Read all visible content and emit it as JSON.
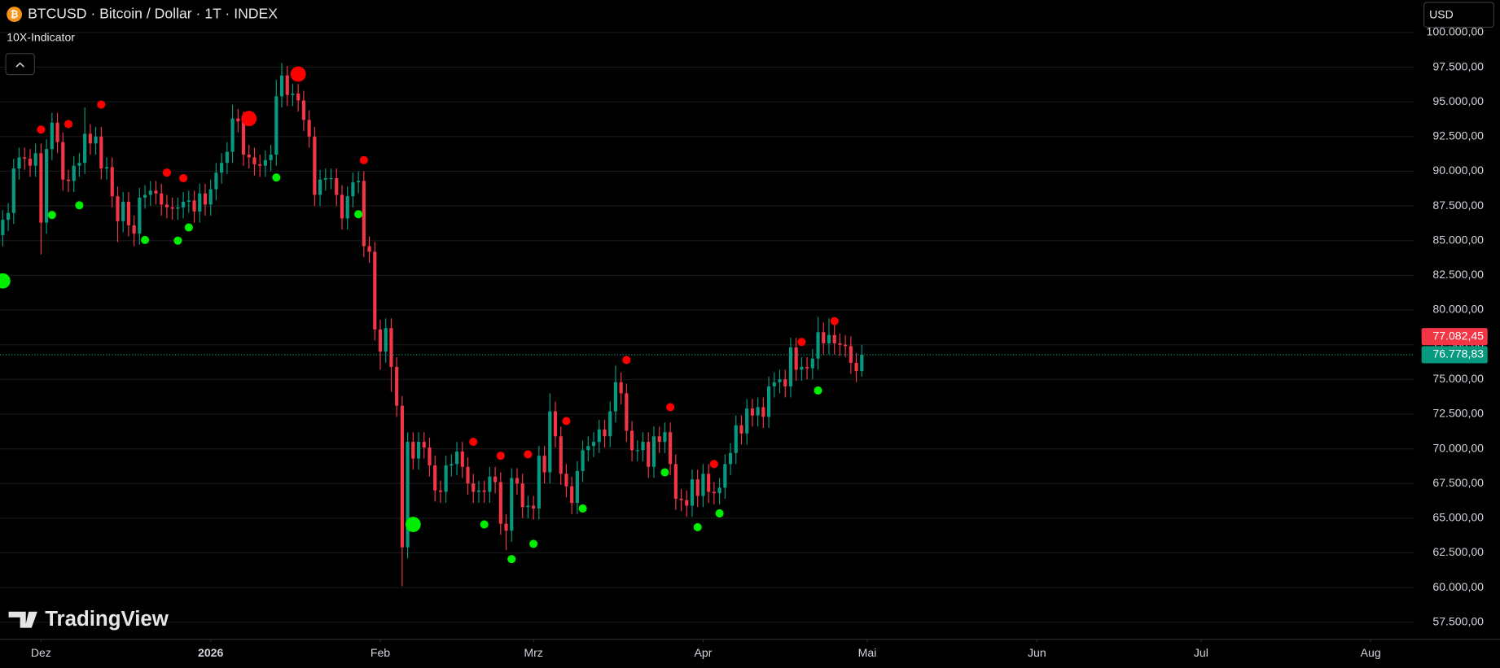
{
  "header": {
    "symbol": "BTCUSD · Bitcoin / Dollar · 1T · INDEX",
    "indicator": "10X-Indicator",
    "currency": "USD",
    "brand": "TradingView"
  },
  "chart_data": {
    "type": "candlestick",
    "open": [
      85400,
      86500,
      87000,
      90200,
      91000,
      90900,
      90400,
      91300,
      86300,
      91600,
      93500,
      92100,
      89400,
      89300,
      90400,
      90600,
      92700,
      92000,
      92500,
      90200,
      90300,
      88200,
      86400,
      87800,
      86100,
      85500,
      88100,
      88300,
      88600,
      88400,
      87600,
      87400,
      87300,
      87400,
      87800,
      87900,
      87100,
      88400,
      87600,
      88700,
      89900,
      90600,
      91400,
      93800,
      93600,
      91200,
      91000,
      90500,
      90400,
      90800,
      91200,
      95400,
      96900,
      95500,
      95600,
      95100,
      93700,
      92500,
      88300,
      89400,
      89500,
      89500,
      88300,
      86600,
      88200,
      89200,
      89300,
      84600,
      84200,
      78600,
      77000,
      78700,
      75900,
      73100,
      62900,
      70500,
      69300,
      70500,
      70100,
      68800,
      67000,
      66900,
      68800,
      68900,
      69800,
      68700,
      67500,
      66900,
      67000,
      66900,
      68000,
      67600,
      64600,
      64100,
      67900,
      67500,
      65800,
      65900,
      65700,
      69500,
      68300,
      72700,
      70900,
      68200,
      67300,
      66100,
      68400,
      69900,
      70200,
      70500,
      71400,
      70900,
      72700,
      74800,
      74000,
      71300,
      69900,
      69900,
      70500,
      68700,
      70900,
      70500,
      71200,
      68900,
      66400,
      66300,
      65900,
      67800,
      66600,
      68200,
      66900,
      66800,
      67200,
      68900,
      69700,
      71700,
      71100,
      72900,
      72400,
      73000,
      72300,
      74500,
      74800,
      75000,
      74500,
      77300,
      75700,
      75900,
      75800,
      76500,
      78400,
      77600,
      78200,
      77600,
      77500,
      77400,
      76200,
      75600
    ],
    "high": [
      87200,
      87700,
      90900,
      91700,
      91700,
      91600,
      92000,
      92000,
      92300,
      94200,
      94200,
      92800,
      90100,
      91100,
      91300,
      94600,
      93400,
      93200,
      93200,
      91000,
      91000,
      88900,
      88500,
      88500,
      86800,
      88800,
      89000,
      89300,
      89300,
      89100,
      88300,
      88100,
      88100,
      88500,
      88600,
      88600,
      89100,
      89100,
      89400,
      90600,
      91300,
      92100,
      94800,
      94500,
      94300,
      91900,
      91700,
      91200,
      91500,
      91900,
      96600,
      97800,
      97600,
      96300,
      96300,
      95800,
      94400,
      93200,
      90100,
      90200,
      90200,
      90200,
      89000,
      88900,
      89900,
      90000,
      90000,
      85300,
      84900,
      79300,
      79400,
      79400,
      76600,
      73800,
      71200,
      71200,
      71200,
      71200,
      70800,
      69500,
      67700,
      69500,
      69600,
      70500,
      70500,
      69400,
      68200,
      67700,
      67700,
      68700,
      68700,
      68300,
      65300,
      68600,
      68600,
      68200,
      66600,
      66600,
      70200,
      70200,
      74000,
      73400,
      71600,
      68900,
      68000,
      69100,
      70600,
      70900,
      71200,
      72100,
      72100,
      73400,
      76000,
      75500,
      74700,
      72000,
      70600,
      71200,
      71200,
      71600,
      71600,
      71900,
      71900,
      69600,
      67100,
      67000,
      68500,
      68500,
      68900,
      68900,
      67600,
      67900,
      69600,
      70400,
      72400,
      72400,
      73600,
      73600,
      73700,
      73700,
      75200,
      75500,
      75700,
      75700,
      78000,
      78000,
      76600,
      76600,
      77200,
      79500,
      79100,
      79400,
      78900,
      78300,
      78200,
      78100,
      76900,
      77500
    ],
    "low": [
      84600,
      85700,
      86200,
      89400,
      90100,
      89600,
      89600,
      84000,
      85500,
      90800,
      91300,
      88600,
      88500,
      88500,
      89600,
      89800,
      91200,
      91200,
      89400,
      89400,
      87400,
      84900,
      85600,
      85300,
      84600,
      84700,
      87300,
      87500,
      87600,
      86800,
      86600,
      86500,
      86500,
      86600,
      87000,
      86300,
      86300,
      86800,
      86800,
      87900,
      89100,
      89800,
      90600,
      92800,
      90400,
      90200,
      89700,
      89600,
      89600,
      90000,
      90400,
      94600,
      94700,
      94700,
      94300,
      92900,
      91700,
      87500,
      87500,
      88600,
      88700,
      87500,
      85800,
      85800,
      87400,
      88400,
      83800,
      83400,
      77800,
      75700,
      76200,
      74100,
      72300,
      60100,
      62100,
      68500,
      68500,
      69300,
      68000,
      66200,
      66100,
      66100,
      68000,
      68100,
      67900,
      66700,
      66100,
      66100,
      66100,
      66100,
      66800,
      63800,
      62700,
      63300,
      66700,
      65000,
      65000,
      64900,
      64900,
      67500,
      67500,
      70100,
      67400,
      66500,
      65300,
      65300,
      67600,
      69100,
      69400,
      69700,
      70100,
      70100,
      71900,
      73200,
      70500,
      69100,
      69100,
      69100,
      67900,
      67900,
      69700,
      69700,
      68100,
      65600,
      65500,
      65100,
      65100,
      65800,
      65800,
      66100,
      66000,
      66000,
      66400,
      68100,
      68900,
      70300,
      70300,
      71600,
      71600,
      71500,
      71500,
      73700,
      74000,
      73700,
      73700,
      74900,
      74900,
      75000,
      75000,
      75700,
      76800,
      76800,
      76800,
      76700,
      76600,
      75400,
      74800,
      75200
    ],
    "close": [
      86500,
      87000,
      90200,
      91000,
      90900,
      90400,
      91300,
      86300,
      91600,
      93500,
      92100,
      89400,
      89300,
      90400,
      90600,
      92700,
      92000,
      92500,
      90200,
      90300,
      88200,
      86400,
      87800,
      86100,
      85500,
      88100,
      88300,
      88600,
      88400,
      87600,
      87400,
      87300,
      87400,
      87800,
      87900,
      87100,
      88400,
      87600,
      88700,
      89900,
      90600,
      91400,
      93800,
      93600,
      91200,
      91000,
      90500,
      90400,
      90800,
      91200,
      95400,
      96900,
      95500,
      95600,
      95100,
      93700,
      92500,
      88300,
      89400,
      89500,
      89500,
      88300,
      86600,
      88200,
      89200,
      89300,
      84600,
      84200,
      78600,
      77000,
      78700,
      75900,
      73100,
      62900,
      70500,
      69300,
      70500,
      70100,
      68800,
      67000,
      66900,
      68800,
      68900,
      69800,
      68700,
      67500,
      66900,
      67000,
      66900,
      68000,
      67600,
      64600,
      64100,
      67900,
      67500,
      65800,
      65900,
      65700,
      69500,
      68300,
      72700,
      70900,
      68200,
      67300,
      66100,
      68400,
      69900,
      70200,
      70500,
      71400,
      70900,
      72700,
      74800,
      74000,
      71300,
      69900,
      69900,
      70500,
      68700,
      70900,
      70500,
      71200,
      68900,
      66400,
      66300,
      65900,
      67800,
      66600,
      68200,
      66900,
      66800,
      67200,
      68900,
      69700,
      71700,
      71100,
      72900,
      72400,
      73000,
      72300,
      74500,
      74800,
      75000,
      74500,
      77300,
      75700,
      75900,
      75800,
      76500,
      78400,
      77600,
      78200,
      77600,
      77500,
      77400,
      76200,
      75600,
      76778.83
    ],
    "up_color": "#089981",
    "down_color": "#f23645",
    "xlim": [
      -0.5,
      257.9
    ],
    "xticks": [
      {
        "value": 7,
        "label": "Dez"
      },
      {
        "value": 38,
        "label": "2026"
      },
      {
        "value": 69,
        "label": "Feb"
      },
      {
        "value": 97,
        "label": "Mrz"
      },
      {
        "value": 128,
        "label": "Apr"
      },
      {
        "value": 158,
        "label": "Mai"
      },
      {
        "value": 189,
        "label": "Jun"
      },
      {
        "value": 219,
        "label": "Jul"
      },
      {
        "value": 250,
        "label": "Aug"
      }
    ],
    "ylim": [
      56340,
      102340
    ],
    "yticks": [
      {
        "value": 57500,
        "label": "57.500,00"
      },
      {
        "value": 60000,
        "label": "60.000,00"
      },
      {
        "value": 62500,
        "label": "62.500,00"
      },
      {
        "value": 65000,
        "label": "65.000,00"
      },
      {
        "value": 67500,
        "label": "67.500,00"
      },
      {
        "value": 70000,
        "label": "70.000,00"
      },
      {
        "value": 72500,
        "label": "72.500,00"
      },
      {
        "value": 75000,
        "label": "75.000,00"
      },
      {
        "value": 77500,
        "label": "77.500,00"
      },
      {
        "value": 80000,
        "label": "80.000,00"
      },
      {
        "value": 82500,
        "label": "82.500,00"
      },
      {
        "value": 85000,
        "label": "85.000,00"
      },
      {
        "value": 87500,
        "label": "87.500,00"
      },
      {
        "value": 90000,
        "label": "90.000,00"
      },
      {
        "value": 92500,
        "label": "92.500,00"
      },
      {
        "value": 95000,
        "label": "95.000,00"
      },
      {
        "value": 97500,
        "label": "97.500,00"
      },
      {
        "value": 100000,
        "label": "100.000,00"
      }
    ],
    "grid": true,
    "signals": [
      {
        "color": "#ff0000",
        "strong": false,
        "x": [
          7,
          12,
          18,
          30,
          33,
          66,
          86,
          91,
          96,
          103,
          114,
          122,
          130,
          146,
          152
        ],
        "y": [
          93000,
          93400,
          94800,
          89900,
          89500,
          90800,
          70500,
          69500,
          69600,
          72000,
          76400,
          73000,
          68900,
          77700,
          79200
        ]
      },
      {
        "color": "#ff0000",
        "strong": true,
        "x": [
          45,
          54
        ],
        "y": [
          93800,
          97000
        ]
      },
      {
        "color": "#00ee00",
        "strong": false,
        "x": [
          9,
          14,
          26,
          32,
          34,
          50,
          65,
          88,
          93,
          97,
          106,
          121,
          127,
          131,
          149
        ],
        "y": [
          86850,
          87550,
          85050,
          85000,
          85950,
          89550,
          86900,
          64550,
          62050,
          63150,
          65700,
          68300,
          64350,
          65350,
          74200
        ]
      },
      {
        "color": "#00ee00",
        "strong": true,
        "x": [
          0,
          75
        ],
        "y": [
          82100,
          64550
        ]
      }
    ],
    "price_labels": [
      {
        "value": 77082.45,
        "label": "77.082,45",
        "color": "#f23645"
      },
      {
        "value": 76778.83,
        "label": "76.778,83",
        "color": "#089981"
      }
    ]
  }
}
